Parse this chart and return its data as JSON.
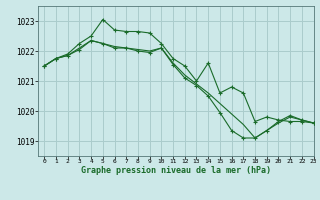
{
  "background_color": "#cce8e8",
  "grid_color": "#aacccc",
  "line_color": "#1a6b2a",
  "title": "Graphe pression niveau de la mer (hPa)",
  "xlim": [
    -0.5,
    23
  ],
  "ylim": [
    1018.5,
    1023.5
  ],
  "yticks": [
    1019,
    1020,
    1021,
    1022,
    1023
  ],
  "xticks": [
    0,
    1,
    2,
    3,
    4,
    5,
    6,
    7,
    8,
    9,
    10,
    11,
    12,
    13,
    14,
    15,
    16,
    17,
    18,
    19,
    20,
    21,
    22,
    23
  ],
  "series": [
    {
      "x": [
        0,
        1,
        2,
        3,
        4,
        5,
        6,
        7,
        8,
        9,
        10,
        11,
        12,
        13,
        14,
        15,
        16,
        17,
        18,
        19,
        20,
        21,
        22,
        23
      ],
      "y": [
        1021.5,
        1021.75,
        1021.9,
        1022.25,
        1022.5,
        1023.05,
        1022.7,
        1022.65,
        1022.65,
        1022.6,
        1022.25,
        1021.75,
        1021.5,
        1021.0,
        1021.6,
        1020.6,
        1020.8,
        1020.6,
        1019.65,
        1019.8,
        1019.7,
        1019.65,
        1019.65,
        1019.6
      ],
      "markers": true
    },
    {
      "x": [
        0,
        1,
        2,
        3,
        4,
        5,
        6,
        7,
        8,
        9,
        10,
        11,
        12,
        13,
        14,
        15,
        16,
        17,
        18,
        19,
        20,
        21,
        22,
        23
      ],
      "y": [
        1021.5,
        1021.75,
        1021.85,
        1022.1,
        1022.35,
        1022.25,
        1022.15,
        1022.1,
        1022.05,
        1022.0,
        1022.1,
        1021.6,
        1021.2,
        1020.9,
        1020.6,
        1020.25,
        1019.9,
        1019.55,
        1019.1,
        1019.35,
        1019.6,
        1019.8,
        1019.7,
        1019.6
      ],
      "markers": false
    },
    {
      "x": [
        0,
        1,
        2,
        3,
        4,
        5,
        6,
        7,
        8,
        9,
        10,
        11,
        12,
        13,
        14,
        15,
        16,
        17,
        18,
        19,
        20,
        21,
        22,
        23
      ],
      "y": [
        1021.5,
        1021.75,
        1021.85,
        1022.05,
        1022.35,
        1022.25,
        1022.1,
        1022.1,
        1022.0,
        1021.95,
        1022.1,
        1021.55,
        1021.1,
        1020.85,
        1020.5,
        1019.95,
        1019.35,
        1019.1,
        1019.1,
        1019.35,
        1019.65,
        1019.85,
        1019.7,
        1019.6
      ],
      "markers": true
    }
  ]
}
